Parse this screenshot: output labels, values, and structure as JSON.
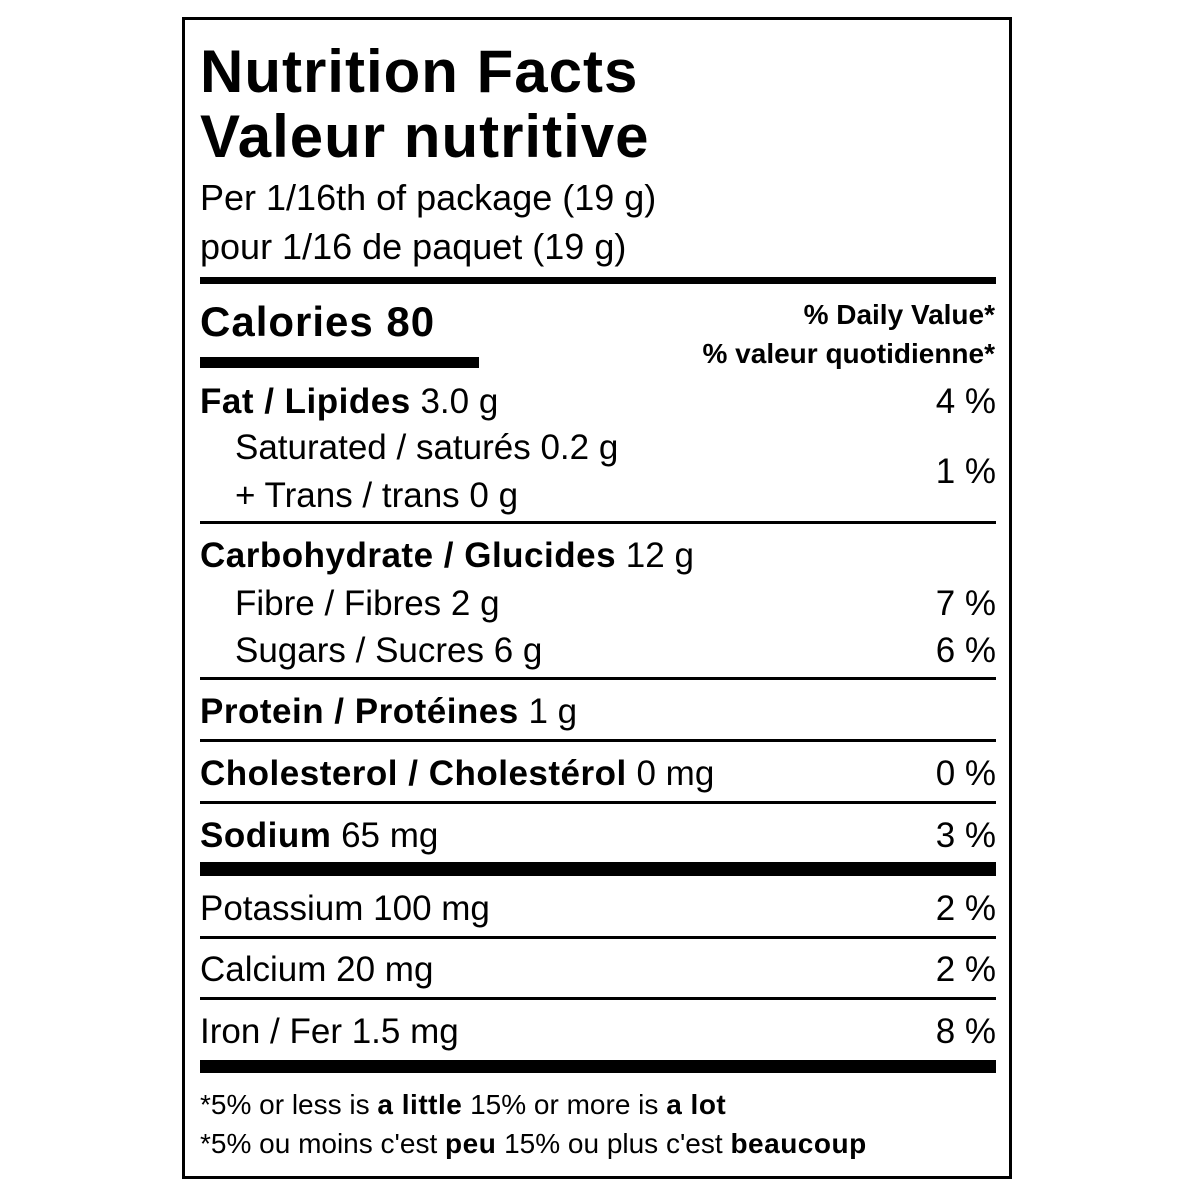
{
  "title_en": "Nutrition Facts",
  "title_fr": "Valeur nutritive",
  "serving_en": "Per 1/16th of package (19 g)",
  "serving_fr": "pour 1/16 de paquet (19 g)",
  "calories_label": "Calories",
  "calories_value": "80",
  "dv_en": "% Daily Value*",
  "dv_fr": "% valeur quotidienne*",
  "nutrients": {
    "fat": {
      "label": "Fat / Lipides",
      "amount": "3.0 g",
      "dv": "4 %"
    },
    "saturated": {
      "label": "Saturated / saturés",
      "amount": "0.2 g"
    },
    "trans": {
      "label": "+ Trans / trans",
      "amount": "0 g"
    },
    "sat_trans_dv": "1 %",
    "carb": {
      "label": "Carbohydrate / Glucides",
      "amount": "12 g"
    },
    "fibre": {
      "label": "Fibre / Fibres",
      "amount": "2 g",
      "dv": "7 %"
    },
    "sugars": {
      "label": "Sugars / Sucres",
      "amount": "6 g",
      "dv": "6 %"
    },
    "protein": {
      "label": "Protein / Protéines",
      "amount": "1 g"
    },
    "cholesterol": {
      "label": "Cholesterol / Cholestérol",
      "amount": "0 mg",
      "dv": "0 %"
    },
    "sodium": {
      "label": "Sodium",
      "amount": "65 mg",
      "dv": "3 %"
    },
    "potassium": {
      "label": "Potassium",
      "amount": "100 mg",
      "dv": "2 %"
    },
    "calcium": {
      "label": "Calcium",
      "amount": "20 mg",
      "dv": "2 %"
    },
    "iron": {
      "label": "Iron / Fer",
      "amount": "1.5 mg",
      "dv": "8 %"
    }
  },
  "footer": {
    "en": {
      "a": "*5% or less is ",
      "b": "a little",
      "c": " 15% or more is ",
      "d": "a lot"
    },
    "fr": {
      "a": "*5% ou moins c'est ",
      "b": "peu",
      "c": " 15% ou plus c'est ",
      "d": "beaucoup"
    }
  }
}
